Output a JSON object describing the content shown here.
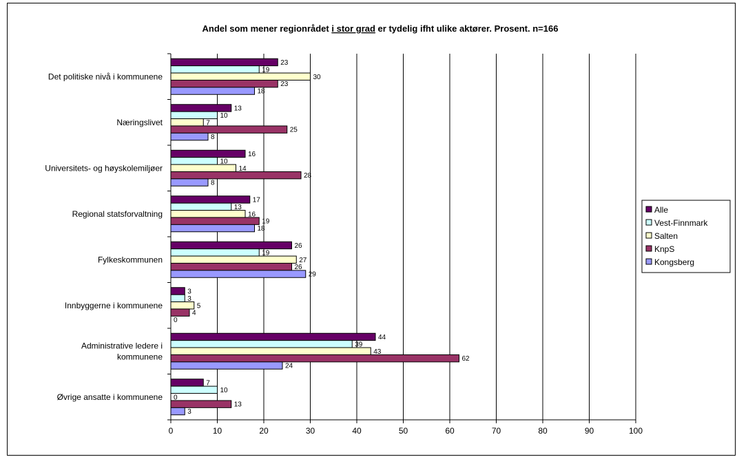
{
  "chart_data": {
    "type": "bar",
    "orientation": "horizontal",
    "title": {
      "prefix": "Andel som mener regionrådet ",
      "underlined": "i stor grad",
      "suffix": " er tydelig ifht ulike aktører. Prosent. n=166"
    },
    "categories": [
      [
        "Det politiske nivå i kommunene"
      ],
      [
        "Næringslivet"
      ],
      [
        "Universitets- og høyskolemiljøer"
      ],
      [
        "Regional statsforvaltning"
      ],
      [
        "Fylkeskommunen"
      ],
      [
        "Innbyggerne i kommunene"
      ],
      [
        "Administrative ledere i",
        "kommunene"
      ],
      [
        "Øvrige ansatte i kommunene"
      ]
    ],
    "series": [
      {
        "name": "Alle",
        "color": "#660066",
        "values": [
          23,
          13,
          16,
          17,
          26,
          3,
          44,
          7
        ]
      },
      {
        "name": "Vest-Finnmark",
        "color": "#ccffff",
        "values": [
          19,
          10,
          10,
          13,
          19,
          3,
          39,
          10
        ]
      },
      {
        "name": "Salten",
        "color": "#ffffcc",
        "values": [
          30,
          7,
          14,
          16,
          27,
          5,
          43,
          0
        ]
      },
      {
        "name": "KnpS",
        "color": "#993366",
        "values": [
          23,
          25,
          28,
          19,
          26,
          4,
          62,
          13
        ]
      },
      {
        "name": "Kongsberg",
        "color": "#9999ff",
        "values": [
          18,
          8,
          8,
          18,
          29,
          0,
          24,
          3
        ]
      }
    ],
    "xlim": [
      0,
      100
    ],
    "xticks": [
      0,
      10,
      20,
      30,
      40,
      50,
      60,
      70,
      80,
      90,
      100
    ],
    "grid": "vertical",
    "legend": "right"
  }
}
